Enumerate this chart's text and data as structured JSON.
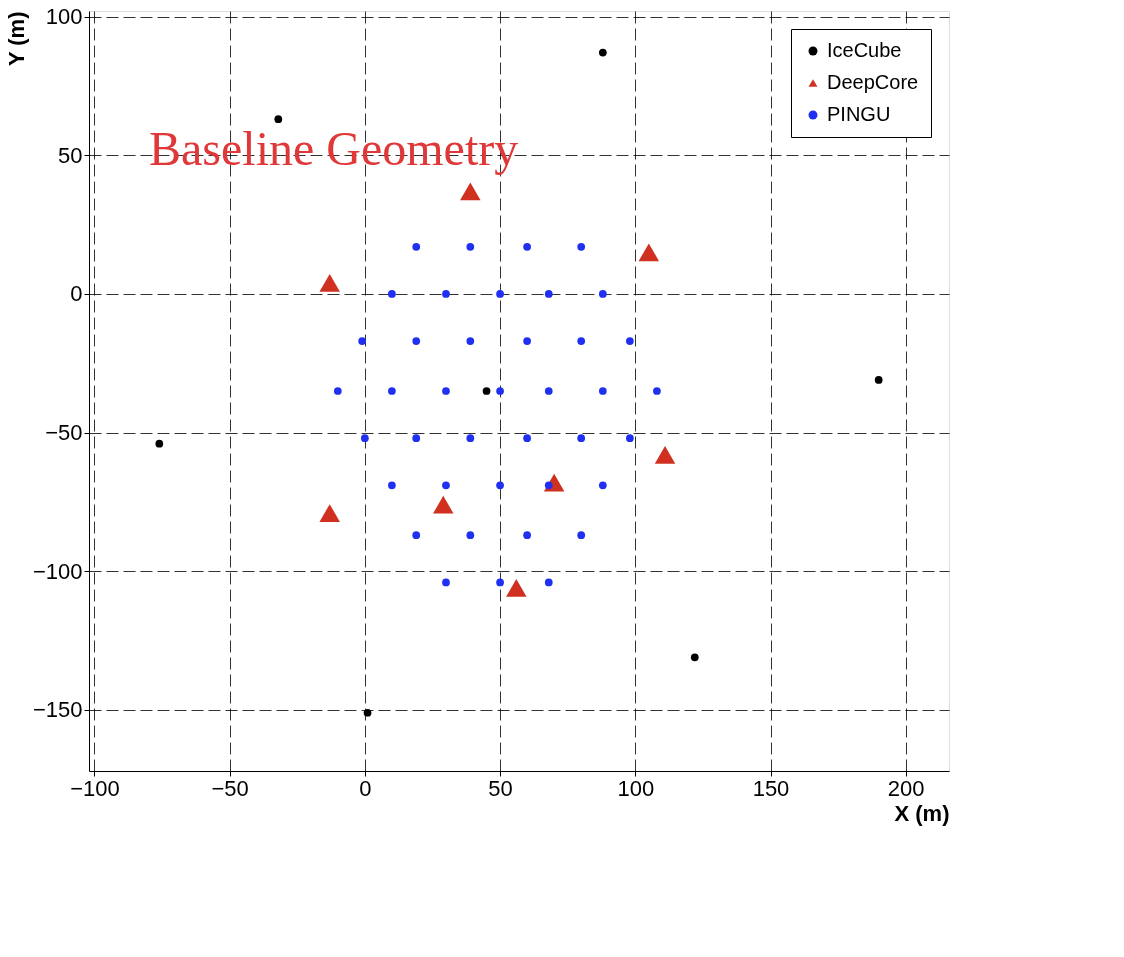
{
  "chart_data": {
    "type": "scatter",
    "xlabel": "X (m)",
    "ylabel": "Y (m)",
    "annotations": [
      "Baseline Geometry"
    ],
    "xlim": [
      -102,
      216
    ],
    "ylim": [
      -172,
      102
    ],
    "xticks": [
      -100,
      -50,
      0,
      50,
      100,
      150,
      200
    ],
    "yticks": [
      -150,
      -100,
      -50,
      0,
      50,
      100
    ],
    "grid": true,
    "legend": "top right",
    "series": [
      {
        "name": "IceCube",
        "color": "#000000",
        "marker": "circle",
        "x": [
          -76,
          -32,
          88,
          190,
          122,
          1,
          45
        ],
        "values": [
          -54,
          63,
          87,
          -31,
          -131,
          -151,
          -35
        ]
      },
      {
        "name": "DeepCore",
        "color": "#d03020",
        "marker": "triangle",
        "x": [
          39,
          105,
          -13,
          111,
          70,
          29,
          -13,
          56
        ],
        "values": [
          37,
          15,
          4,
          -58,
          -68,
          -76,
          -79,
          -106
        ]
      },
      {
        "name": "PINGU",
        "color": "#2030f0",
        "marker": "circle",
        "x": [
          19,
          39,
          60,
          80,
          10,
          30,
          50,
          68,
          88,
          -1,
          19,
          39,
          60,
          80,
          98,
          -10,
          10,
          30,
          50,
          68,
          88,
          108,
          0,
          19,
          39,
          60,
          80,
          98,
          10,
          30,
          50,
          68,
          88,
          19,
          39,
          60,
          80,
          30,
          50,
          68
        ],
        "values": [
          17,
          17,
          17,
          17,
          0,
          0,
          0,
          0,
          0,
          -17,
          -17,
          -17,
          -17,
          -17,
          -17,
          -35,
          -35,
          -35,
          -35,
          -35,
          -35,
          -35,
          -52,
          -52,
          -52,
          -52,
          -52,
          -52,
          -69,
          -69,
          -69,
          -69,
          -69,
          -87,
          -87,
          -87,
          -87,
          -104,
          -104,
          -104
        ]
      }
    ]
  }
}
